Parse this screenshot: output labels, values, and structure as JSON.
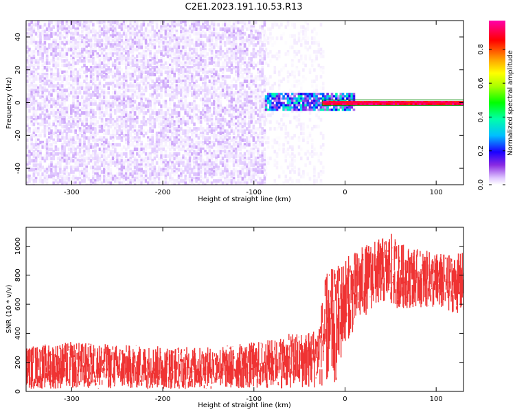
{
  "title": "C2E1.2023.191.10.53.R13",
  "chart_data": [
    {
      "type": "heatmap",
      "xlabel": "Height of straight line (km)",
      "ylabel": "Frequency (Hz)",
      "xlim": [
        -350,
        130
      ],
      "ylim": [
        -50,
        50
      ],
      "xticks": [
        -300,
        -200,
        -100,
        0,
        100
      ],
      "yticks": [
        -40,
        -20,
        0,
        20,
        40
      ],
      "colorbar": {
        "label": "Normalized spectral amplitude",
        "range": [
          0,
          0.97
        ],
        "ticks": [
          0.0,
          0.2,
          0.4,
          0.6,
          0.8
        ],
        "colormap": [
          "#ffffff",
          "#e0c8ff",
          "#8a2be2",
          "#0000ff",
          "#00bfff",
          "#00ffaa",
          "#00ff00",
          "#aaff00",
          "#ffff00",
          "#ffa500",
          "#ff0000",
          "#ff00aa"
        ]
      },
      "regions": [
        {
          "x_range": [
            -350,
            -88
          ],
          "freq_range": [
            -50,
            50
          ],
          "amplitude_range": [
            0.0,
            0.08
          ],
          "note": "broadband noise, purple"
        },
        {
          "x_range": [
            -88,
            -25
          ],
          "freq_range": [
            -50,
            50
          ],
          "amplitude_range": [
            0.0,
            0.03
          ],
          "note": "faint noise, light lavender"
        },
        {
          "x_range": [
            -88,
            10
          ],
          "freq_range": [
            -4,
            6
          ],
          "amplitude_range": [
            0.15,
            0.4
          ],
          "note": "signal onset, blue-green"
        },
        {
          "x_range": [
            -25,
            130
          ],
          "freq_range": [
            -1,
            1
          ],
          "amplitude_range": [
            0.85,
            0.97
          ],
          "note": "carrier line at 0 Hz, red/magenta"
        }
      ]
    },
    {
      "type": "line",
      "xlabel": "Height of straight line (km)",
      "ylabel": "SNR (10 * v/v)",
      "xlim": [
        -350,
        130
      ],
      "ylim": [
        0,
        1130
      ],
      "xticks": [
        -300,
        -200,
        -100,
        0,
        100
      ],
      "yticks": [
        0,
        200,
        400,
        600,
        800,
        1000
      ],
      "color": "#ef3333",
      "series_envelope": {
        "x": [
          -350,
          -300,
          -250,
          -200,
          -150,
          -100,
          -80,
          -60,
          -40,
          -30,
          -20,
          -10,
          0,
          10,
          20,
          30,
          40,
          50,
          60,
          80,
          100,
          120,
          130
        ],
        "lower": [
          0,
          0,
          0,
          0,
          0,
          0,
          0,
          0,
          0,
          0,
          0,
          0,
          300,
          380,
          480,
          540,
          580,
          560,
          540,
          560,
          540,
          520,
          500
        ],
        "upper": [
          330,
          360,
          340,
          330,
          320,
          360,
          380,
          420,
          440,
          480,
          880,
          900,
          960,
          990,
          1030,
          1060,
          1080,
          1120,
          1050,
          1000,
          980,
          960,
          990
        ]
      }
    }
  ]
}
